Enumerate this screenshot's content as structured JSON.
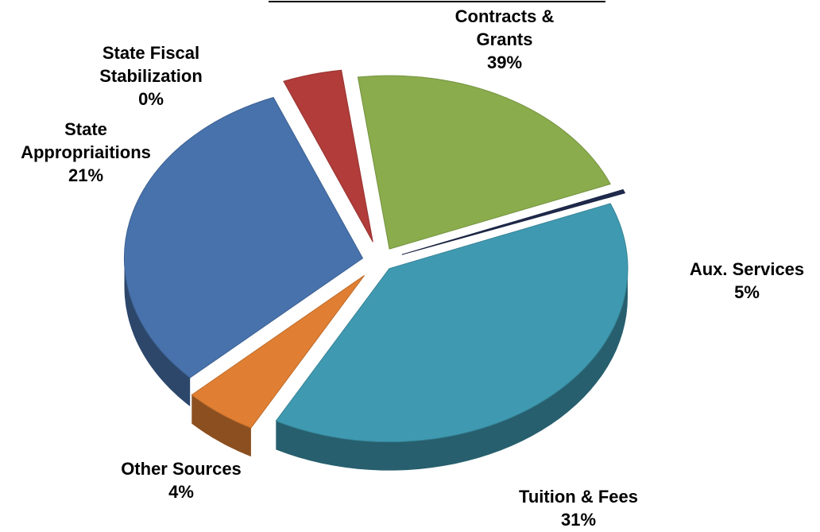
{
  "chart_data": {
    "type": "pie",
    "title": "",
    "slices": [
      {
        "label": [
          "Contracts &",
          "Grants"
        ],
        "value": 39,
        "percent_label": "39%",
        "color": "#3f9ab1"
      },
      {
        "label": [
          "Aux. Services"
        ],
        "value": 5,
        "percent_label": "5%",
        "color": "#e07f33"
      },
      {
        "label": [
          "Tuition & Fees"
        ],
        "value": 31,
        "percent_label": "31%",
        "color": "#4872ac"
      },
      {
        "label": [
          "Other Sources"
        ],
        "value": 4,
        "percent_label": "4%",
        "color": "#b13c3a"
      },
      {
        "label": [
          "State",
          "Appropriaitions"
        ],
        "value": 21,
        "percent_label": "21%",
        "color": "#8aac4c"
      },
      {
        "label": [
          "State Fiscal",
          "Stabilization"
        ],
        "value": 0,
        "percent_label": "0%",
        "color": "#1f2a4d"
      }
    ],
    "exploded": true,
    "three_d": true,
    "legend": "none"
  }
}
